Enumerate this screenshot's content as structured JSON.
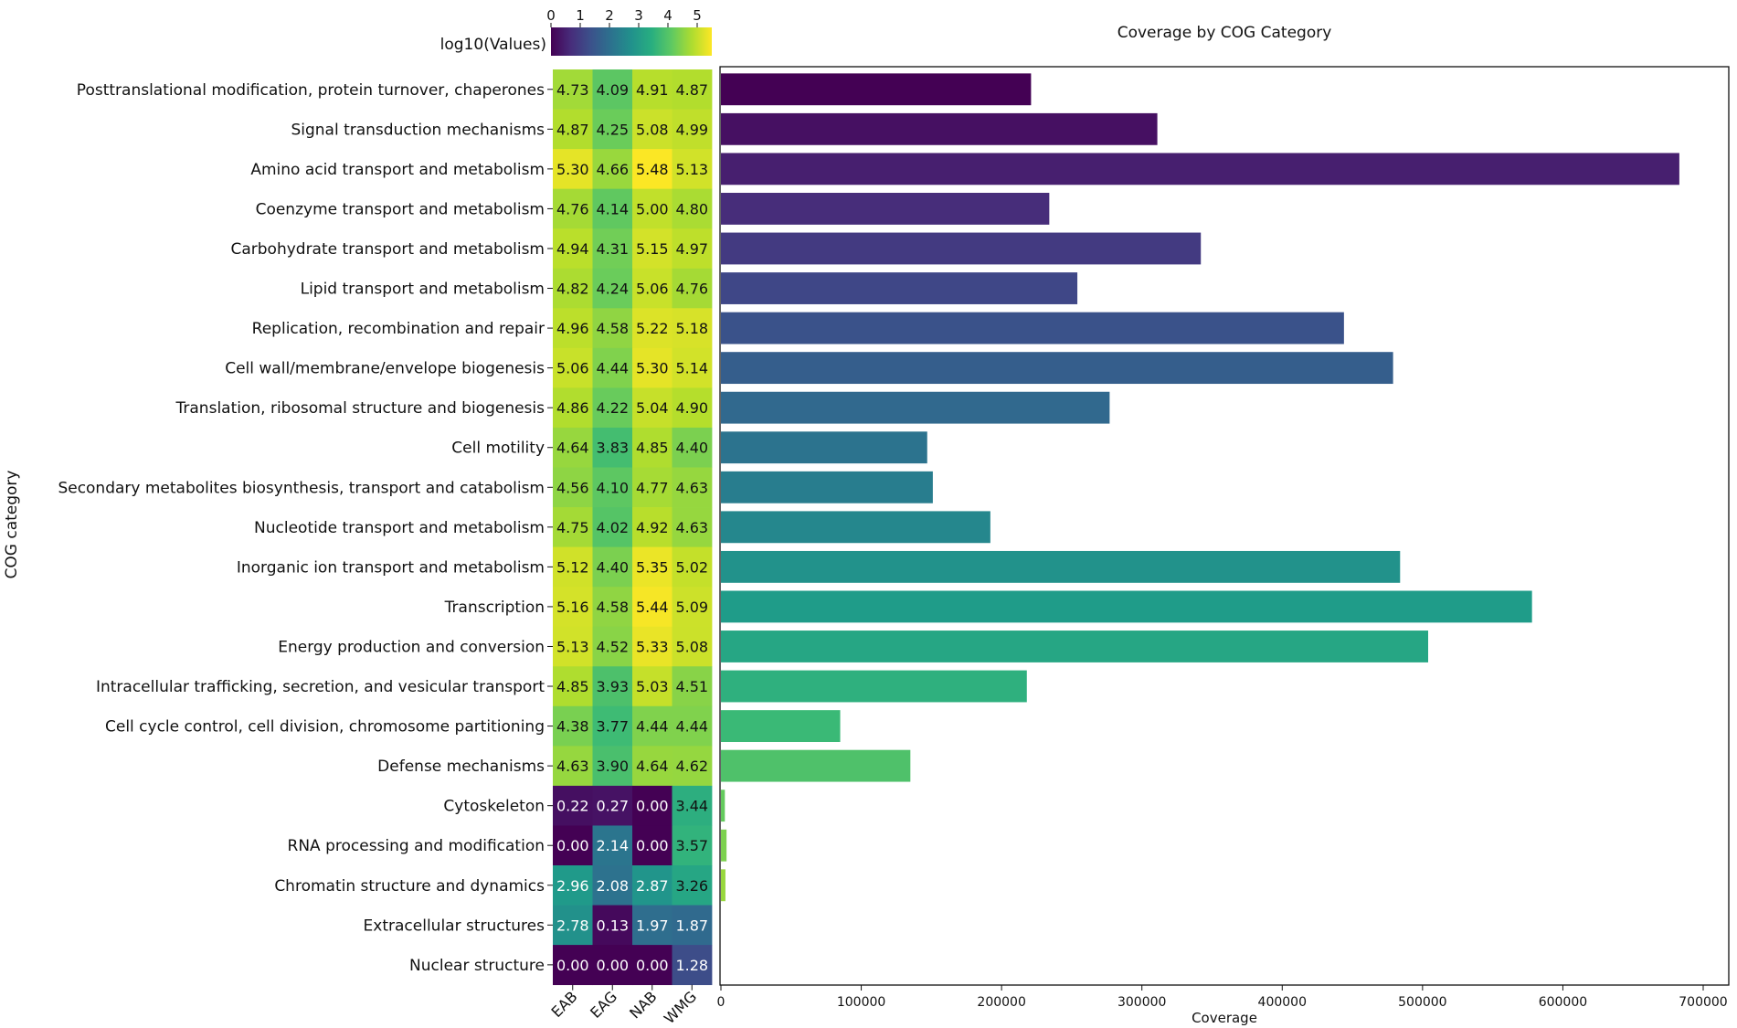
{
  "chart_data": [
    {
      "type": "heatmap",
      "colorbar_label": "log10(Values)",
      "colorbar_ticks": [
        "0",
        "1",
        "2",
        "3",
        "4",
        "5"
      ],
      "colorbar_range": [
        0,
        5.5
      ],
      "columns": [
        "EAB",
        "EAG",
        "NAB",
        "WMG"
      ],
      "ylabel": "COG category",
      "categories": [
        "Posttranslational modification, protein turnover, chaperones",
        "Signal transduction mechanisms",
        "Amino acid transport and metabolism",
        "Coenzyme transport and metabolism",
        "Carbohydrate transport and metabolism",
        "Lipid transport and metabolism",
        "Replication, recombination and repair",
        "Cell wall/membrane/envelope biogenesis",
        "Translation, ribosomal structure and biogenesis",
        "Cell motility",
        "Secondary metabolites biosynthesis, transport and catabolism",
        "Nucleotide transport and metabolism",
        "Inorganic ion transport and metabolism",
        "Transcription",
        "Energy production and conversion",
        "Intracellular trafficking, secretion, and vesicular transport",
        "Cell cycle control, cell division, chromosome partitioning",
        "Defense mechanisms",
        "Cytoskeleton",
        "RNA processing and modification",
        "Chromatin structure and dynamics",
        "Extracellular structures",
        "Nuclear structure"
      ],
      "values": [
        [
          "4.73",
          "4.09",
          "4.91",
          "4.87"
        ],
        [
          "4.87",
          "4.25",
          "5.08",
          "4.99"
        ],
        [
          "5.30",
          "4.66",
          "5.48",
          "5.13"
        ],
        [
          "4.76",
          "4.14",
          "5.00",
          "4.80"
        ],
        [
          "4.94",
          "4.31",
          "5.15",
          "4.97"
        ],
        [
          "4.82",
          "4.24",
          "5.06",
          "4.76"
        ],
        [
          "4.96",
          "4.58",
          "5.22",
          "5.18"
        ],
        [
          "5.06",
          "4.44",
          "5.30",
          "5.14"
        ],
        [
          "4.86",
          "4.22",
          "5.04",
          "4.90"
        ],
        [
          "4.64",
          "3.83",
          "4.85",
          "4.40"
        ],
        [
          "4.56",
          "4.10",
          "4.77",
          "4.63"
        ],
        [
          "4.75",
          "4.02",
          "4.92",
          "4.63"
        ],
        [
          "5.12",
          "4.40",
          "5.35",
          "5.02"
        ],
        [
          "5.16",
          "4.58",
          "5.44",
          "5.09"
        ],
        [
          "5.13",
          "4.52",
          "5.33",
          "5.08"
        ],
        [
          "4.85",
          "3.93",
          "5.03",
          "4.51"
        ],
        [
          "4.38",
          "3.77",
          "4.44",
          "4.44"
        ],
        [
          "4.63",
          "3.90",
          "4.64",
          "4.62"
        ],
        [
          "0.22",
          "0.27",
          "0.00",
          "3.44"
        ],
        [
          "0.00",
          "2.14",
          "0.00",
          "3.57"
        ],
        [
          "2.96",
          "2.08",
          "2.87",
          "3.26"
        ],
        [
          "2.78",
          "0.13",
          "1.97",
          "1.87"
        ],
        [
          "0.00",
          "0.00",
          "0.00",
          "1.28"
        ]
      ]
    },
    {
      "type": "bar",
      "orientation": "horizontal",
      "title": "Coverage by COG Category",
      "xlabel": "Coverage",
      "xlim": [
        0,
        700000
      ],
      "xticks": [
        0,
        100000,
        200000,
        300000,
        400000,
        500000,
        600000,
        700000
      ],
      "xtick_labels": [
        "0",
        "100000",
        "200000",
        "300000",
        "400000",
        "500000",
        "600000",
        "700000"
      ],
      "values": [
        221000,
        311000,
        683000,
        234000,
        342000,
        254000,
        444000,
        479000,
        277000,
        147000,
        151000,
        192000,
        484000,
        578000,
        504000,
        218000,
        85000,
        135000,
        2800,
        4000,
        3200,
        0,
        0
      ]
    }
  ]
}
